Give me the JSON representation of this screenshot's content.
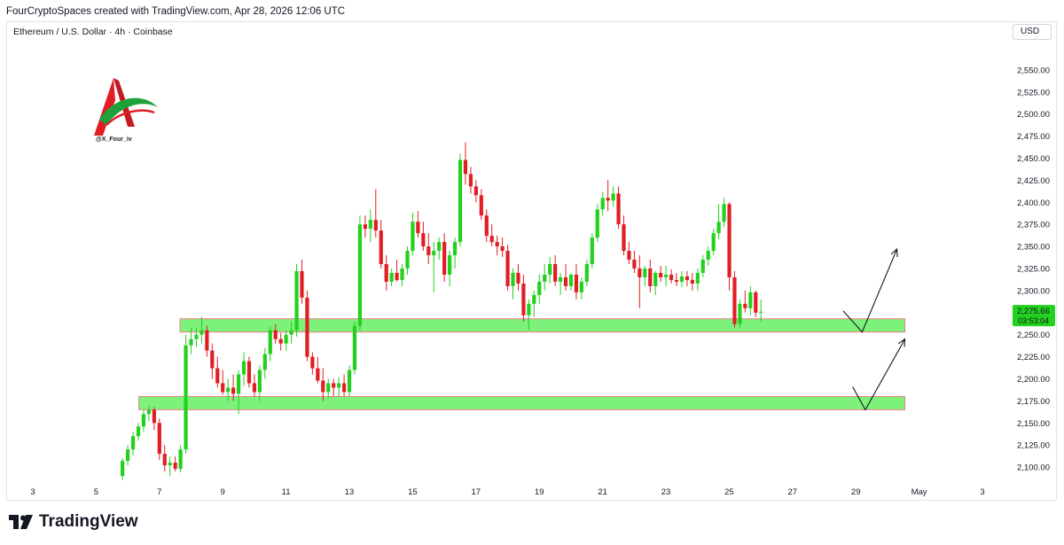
{
  "header": {
    "attribution": "FourCryptoSpaces created with TradingView.com, Apr 28, 2026 12:06 UTC",
    "symbol_line": "Ethereum / U.S. Dollar · 4h · Coinbase",
    "currency": "USD"
  },
  "watermark": {
    "handle": "@X_Four_iv"
  },
  "footer": {
    "brand": "TradingView"
  },
  "colors": {
    "up": "#22d11e",
    "down": "#e01e24",
    "zone_fill": "#7cf27b",
    "zone_border": "#ef7c82",
    "price_tag": "#22d11e"
  },
  "chart_data": {
    "type": "candlestick",
    "timeframe": "4h",
    "y_axis": {
      "range": [
        2082,
        2582
      ],
      "ticks": [
        "2,550.00",
        "2,525.00",
        "2,500.00",
        "2,475.00",
        "2,450.00",
        "2,425.00",
        "2,400.00",
        "2,375.00",
        "2,350.00",
        "2,325.00",
        "2,300.00",
        "2,275.00",
        "2,250.00",
        "2,225.00",
        "2,200.00",
        "2,175.00",
        "2,150.00",
        "2,125.00",
        "2,100.00"
      ],
      "tick_values": [
        2550,
        2525,
        2500,
        2475,
        2450,
        2425,
        2400,
        2375,
        2350,
        2325,
        2300,
        2275,
        2250,
        2225,
        2200,
        2175,
        2150,
        2125,
        2100
      ]
    },
    "x_axis": {
      "range": [
        2.05,
        4.05
      ],
      "ticks": [
        "3",
        "5",
        "7",
        "9",
        "11",
        "13",
        "15",
        "17",
        "19",
        "21",
        "23",
        "25",
        "27",
        "29",
        "May",
        "3"
      ],
      "tick_values": [
        3,
        5,
        7,
        9,
        11,
        13,
        15,
        17,
        19,
        21,
        23,
        25,
        27,
        29,
        31,
        33
      ]
    },
    "current_price": {
      "value": 2275.66,
      "label": "2,275.66",
      "countdown": "03:53:04"
    },
    "zones": [
      {
        "from_day": 7.65,
        "to_day": 30.55,
        "low": 2253,
        "high": 2268
      },
      {
        "from_day": 6.35,
        "to_day": 30.55,
        "low": 2165,
        "high": 2180
      }
    ],
    "projections": [
      {
        "points": [
          [
            28.6,
            2277
          ],
          [
            29.2,
            2253
          ],
          [
            30.3,
            2347
          ]
        ]
      },
      {
        "points": [
          [
            28.9,
            2191
          ],
          [
            29.3,
            2165
          ],
          [
            30.55,
            2245
          ]
        ]
      }
    ],
    "ohlc_start_day": 5.833,
    "ohlc_step_days": 0.1667,
    "ohlc": [
      [
        2090,
        2110,
        2085,
        2107
      ],
      [
        2107,
        2125,
        2102,
        2120
      ],
      [
        2120,
        2140,
        2113,
        2135
      ],
      [
        2135,
        2150,
        2130,
        2146
      ],
      [
        2146,
        2165,
        2140,
        2160
      ],
      [
        2160,
        2170,
        2152,
        2165
      ],
      [
        2165,
        2168,
        2142,
        2150
      ],
      [
        2150,
        2155,
        2108,
        2115
      ],
      [
        2115,
        2125,
        2095,
        2102
      ],
      [
        2102,
        2112,
        2090,
        2105
      ],
      [
        2105,
        2112,
        2095,
        2098
      ],
      [
        2098,
        2125,
        2094,
        2120
      ],
      [
        2120,
        2250,
        2115,
        2238
      ],
      [
        2238,
        2258,
        2228,
        2245
      ],
      [
        2245,
        2258,
        2236,
        2250
      ],
      [
        2250,
        2270,
        2240,
        2255
      ],
      [
        2255,
        2260,
        2225,
        2232
      ],
      [
        2232,
        2240,
        2200,
        2212
      ],
      [
        2212,
        2225,
        2190,
        2195
      ],
      [
        2195,
        2210,
        2182,
        2185
      ],
      [
        2185,
        2200,
        2175,
        2190
      ],
      [
        2190,
        2205,
        2175,
        2183
      ],
      [
        2183,
        2210,
        2160,
        2205
      ],
      [
        2205,
        2230,
        2192,
        2220
      ],
      [
        2220,
        2225,
        2190,
        2195
      ],
      [
        2195,
        2205,
        2180,
        2185
      ],
      [
        2185,
        2215,
        2175,
        2210
      ],
      [
        2210,
        2235,
        2200,
        2228
      ],
      [
        2228,
        2260,
        2220,
        2255
      ],
      [
        2255,
        2262,
        2240,
        2245
      ],
      [
        2245,
        2252,
        2232,
        2240
      ],
      [
        2240,
        2255,
        2232,
        2250
      ],
      [
        2250,
        2265,
        2240,
        2255
      ],
      [
        2255,
        2330,
        2248,
        2322
      ],
      [
        2322,
        2335,
        2285,
        2292
      ],
      [
        2292,
        2300,
        2220,
        2225
      ],
      [
        2225,
        2230,
        2205,
        2212
      ],
      [
        2212,
        2225,
        2195,
        2198
      ],
      [
        2198,
        2212,
        2175,
        2185
      ],
      [
        2185,
        2200,
        2178,
        2195
      ],
      [
        2195,
        2200,
        2180,
        2190
      ],
      [
        2190,
        2202,
        2180,
        2195
      ],
      [
        2195,
        2205,
        2180,
        2185
      ],
      [
        2185,
        2215,
        2180,
        2210
      ],
      [
        2210,
        2265,
        2205,
        2260
      ],
      [
        2260,
        2385,
        2255,
        2375
      ],
      [
        2375,
        2385,
        2360,
        2370
      ],
      [
        2370,
        2392,
        2355,
        2380
      ],
      [
        2380,
        2415,
        2360,
        2368
      ],
      [
        2368,
        2380,
        2325,
        2330
      ],
      [
        2330,
        2340,
        2300,
        2310
      ],
      [
        2310,
        2325,
        2305,
        2320
      ],
      [
        2320,
        2335,
        2310,
        2312
      ],
      [
        2312,
        2330,
        2305,
        2325
      ],
      [
        2325,
        2350,
        2318,
        2345
      ],
      [
        2345,
        2388,
        2340,
        2378
      ],
      [
        2378,
        2390,
        2360,
        2365
      ],
      [
        2365,
        2378,
        2345,
        2350
      ],
      [
        2350,
        2365,
        2330,
        2340
      ],
      [
        2340,
        2355,
        2298,
        2345
      ],
      [
        2345,
        2360,
        2335,
        2355
      ],
      [
        2355,
        2365,
        2310,
        2318
      ],
      [
        2318,
        2345,
        2305,
        2340
      ],
      [
        2340,
        2360,
        2325,
        2355
      ],
      [
        2355,
        2455,
        2350,
        2448
      ],
      [
        2448,
        2468,
        2420,
        2432
      ],
      [
        2432,
        2440,
        2410,
        2418
      ],
      [
        2418,
        2425,
        2400,
        2408
      ],
      [
        2408,
        2415,
        2380,
        2385
      ],
      [
        2385,
        2392,
        2355,
        2362
      ],
      [
        2362,
        2375,
        2350,
        2355
      ],
      [
        2355,
        2362,
        2340,
        2350
      ],
      [
        2350,
        2360,
        2338,
        2345
      ],
      [
        2345,
        2352,
        2300,
        2305
      ],
      [
        2305,
        2325,
        2290,
        2320
      ],
      [
        2320,
        2330,
        2300,
        2308
      ],
      [
        2308,
        2318,
        2265,
        2272
      ],
      [
        2272,
        2290,
        2255,
        2285
      ],
      [
        2285,
        2300,
        2270,
        2295
      ],
      [
        2295,
        2318,
        2285,
        2310
      ],
      [
        2310,
        2330,
        2300,
        2318
      ],
      [
        2318,
        2338,
        2308,
        2330
      ],
      [
        2330,
        2340,
        2305,
        2310
      ],
      [
        2310,
        2320,
        2295,
        2315
      ],
      [
        2315,
        2330,
        2300,
        2305
      ],
      [
        2305,
        2320,
        2300,
        2318
      ],
      [
        2318,
        2330,
        2290,
        2298
      ],
      [
        2298,
        2315,
        2290,
        2310
      ],
      [
        2310,
        2335,
        2305,
        2330
      ],
      [
        2330,
        2365,
        2325,
        2360
      ],
      [
        2360,
        2398,
        2355,
        2392
      ],
      [
        2392,
        2412,
        2385,
        2405
      ],
      [
        2405,
        2425,
        2390,
        2402
      ],
      [
        2402,
        2418,
        2395,
        2410
      ],
      [
        2410,
        2418,
        2370,
        2375
      ],
      [
        2375,
        2385,
        2340,
        2345
      ],
      [
        2345,
        2355,
        2330,
        2335
      ],
      [
        2335,
        2345,
        2320,
        2325
      ],
      [
        2325,
        2340,
        2280,
        2315
      ],
      [
        2315,
        2328,
        2305,
        2325
      ],
      [
        2325,
        2335,
        2298,
        2305
      ],
      [
        2305,
        2322,
        2295,
        2320
      ],
      [
        2320,
        2328,
        2310,
        2315
      ],
      [
        2315,
        2328,
        2305,
        2318
      ],
      [
        2318,
        2324,
        2308,
        2312
      ],
      [
        2312,
        2320,
        2305,
        2310
      ],
      [
        2310,
        2322,
        2304,
        2316
      ],
      [
        2316,
        2322,
        2305,
        2312
      ],
      [
        2312,
        2320,
        2300,
        2308
      ],
      [
        2308,
        2325,
        2300,
        2320
      ],
      [
        2320,
        2340,
        2315,
        2335
      ],
      [
        2335,
        2350,
        2328,
        2345
      ],
      [
        2345,
        2370,
        2340,
        2365
      ],
      [
        2365,
        2398,
        2358,
        2378
      ],
      [
        2378,
        2405,
        2372,
        2398
      ],
      [
        2398,
        2400,
        2300,
        2315
      ],
      [
        2315,
        2322,
        2258,
        2262
      ],
      [
        2262,
        2290,
        2258,
        2285
      ],
      [
        2285,
        2300,
        2275,
        2280
      ],
      [
        2280,
        2305,
        2272,
        2298
      ],
      [
        2298,
        2300,
        2270,
        2275
      ],
      [
        2275,
        2290,
        2265,
        2276
      ]
    ]
  }
}
